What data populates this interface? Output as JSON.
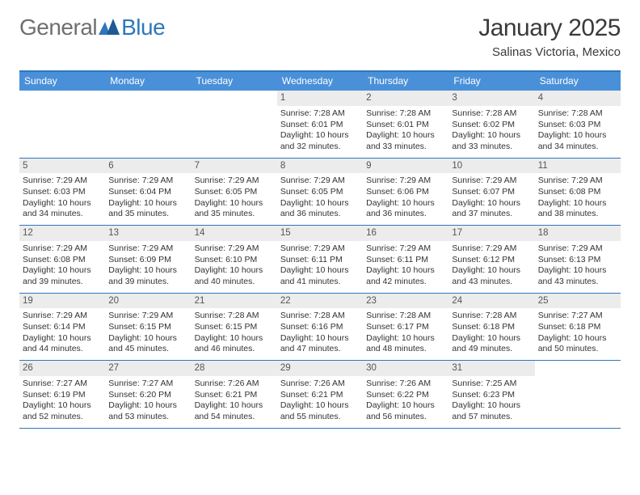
{
  "logo": {
    "text1": "General",
    "text2": "Blue"
  },
  "title": "January 2025",
  "location": "Salinas Victoria, Mexico",
  "colors": {
    "accent": "#4a90d9",
    "rule": "#2f77bb",
    "dayNumBg": "#ececec",
    "text": "#333333",
    "logoGray": "#6f6f6f"
  },
  "dow": [
    "Sunday",
    "Monday",
    "Tuesday",
    "Wednesday",
    "Thursday",
    "Friday",
    "Saturday"
  ],
  "weeks": [
    [
      {
        "n": "",
        "sr": "",
        "ss": "",
        "dl": ""
      },
      {
        "n": "",
        "sr": "",
        "ss": "",
        "dl": ""
      },
      {
        "n": "",
        "sr": "",
        "ss": "",
        "dl": ""
      },
      {
        "n": "1",
        "sr": "Sunrise: 7:28 AM",
        "ss": "Sunset: 6:01 PM",
        "dl": "Daylight: 10 hours and 32 minutes."
      },
      {
        "n": "2",
        "sr": "Sunrise: 7:28 AM",
        "ss": "Sunset: 6:01 PM",
        "dl": "Daylight: 10 hours and 33 minutes."
      },
      {
        "n": "3",
        "sr": "Sunrise: 7:28 AM",
        "ss": "Sunset: 6:02 PM",
        "dl": "Daylight: 10 hours and 33 minutes."
      },
      {
        "n": "4",
        "sr": "Sunrise: 7:28 AM",
        "ss": "Sunset: 6:03 PM",
        "dl": "Daylight: 10 hours and 34 minutes."
      }
    ],
    [
      {
        "n": "5",
        "sr": "Sunrise: 7:29 AM",
        "ss": "Sunset: 6:03 PM",
        "dl": "Daylight: 10 hours and 34 minutes."
      },
      {
        "n": "6",
        "sr": "Sunrise: 7:29 AM",
        "ss": "Sunset: 6:04 PM",
        "dl": "Daylight: 10 hours and 35 minutes."
      },
      {
        "n": "7",
        "sr": "Sunrise: 7:29 AM",
        "ss": "Sunset: 6:05 PM",
        "dl": "Daylight: 10 hours and 35 minutes."
      },
      {
        "n": "8",
        "sr": "Sunrise: 7:29 AM",
        "ss": "Sunset: 6:05 PM",
        "dl": "Daylight: 10 hours and 36 minutes."
      },
      {
        "n": "9",
        "sr": "Sunrise: 7:29 AM",
        "ss": "Sunset: 6:06 PM",
        "dl": "Daylight: 10 hours and 36 minutes."
      },
      {
        "n": "10",
        "sr": "Sunrise: 7:29 AM",
        "ss": "Sunset: 6:07 PM",
        "dl": "Daylight: 10 hours and 37 minutes."
      },
      {
        "n": "11",
        "sr": "Sunrise: 7:29 AM",
        "ss": "Sunset: 6:08 PM",
        "dl": "Daylight: 10 hours and 38 minutes."
      }
    ],
    [
      {
        "n": "12",
        "sr": "Sunrise: 7:29 AM",
        "ss": "Sunset: 6:08 PM",
        "dl": "Daylight: 10 hours and 39 minutes."
      },
      {
        "n": "13",
        "sr": "Sunrise: 7:29 AM",
        "ss": "Sunset: 6:09 PM",
        "dl": "Daylight: 10 hours and 39 minutes."
      },
      {
        "n": "14",
        "sr": "Sunrise: 7:29 AM",
        "ss": "Sunset: 6:10 PM",
        "dl": "Daylight: 10 hours and 40 minutes."
      },
      {
        "n": "15",
        "sr": "Sunrise: 7:29 AM",
        "ss": "Sunset: 6:11 PM",
        "dl": "Daylight: 10 hours and 41 minutes."
      },
      {
        "n": "16",
        "sr": "Sunrise: 7:29 AM",
        "ss": "Sunset: 6:11 PM",
        "dl": "Daylight: 10 hours and 42 minutes."
      },
      {
        "n": "17",
        "sr": "Sunrise: 7:29 AM",
        "ss": "Sunset: 6:12 PM",
        "dl": "Daylight: 10 hours and 43 minutes."
      },
      {
        "n": "18",
        "sr": "Sunrise: 7:29 AM",
        "ss": "Sunset: 6:13 PM",
        "dl": "Daylight: 10 hours and 43 minutes."
      }
    ],
    [
      {
        "n": "19",
        "sr": "Sunrise: 7:29 AM",
        "ss": "Sunset: 6:14 PM",
        "dl": "Daylight: 10 hours and 44 minutes."
      },
      {
        "n": "20",
        "sr": "Sunrise: 7:29 AM",
        "ss": "Sunset: 6:15 PM",
        "dl": "Daylight: 10 hours and 45 minutes."
      },
      {
        "n": "21",
        "sr": "Sunrise: 7:28 AM",
        "ss": "Sunset: 6:15 PM",
        "dl": "Daylight: 10 hours and 46 minutes."
      },
      {
        "n": "22",
        "sr": "Sunrise: 7:28 AM",
        "ss": "Sunset: 6:16 PM",
        "dl": "Daylight: 10 hours and 47 minutes."
      },
      {
        "n": "23",
        "sr": "Sunrise: 7:28 AM",
        "ss": "Sunset: 6:17 PM",
        "dl": "Daylight: 10 hours and 48 minutes."
      },
      {
        "n": "24",
        "sr": "Sunrise: 7:28 AM",
        "ss": "Sunset: 6:18 PM",
        "dl": "Daylight: 10 hours and 49 minutes."
      },
      {
        "n": "25",
        "sr": "Sunrise: 7:27 AM",
        "ss": "Sunset: 6:18 PM",
        "dl": "Daylight: 10 hours and 50 minutes."
      }
    ],
    [
      {
        "n": "26",
        "sr": "Sunrise: 7:27 AM",
        "ss": "Sunset: 6:19 PM",
        "dl": "Daylight: 10 hours and 52 minutes."
      },
      {
        "n": "27",
        "sr": "Sunrise: 7:27 AM",
        "ss": "Sunset: 6:20 PM",
        "dl": "Daylight: 10 hours and 53 minutes."
      },
      {
        "n": "28",
        "sr": "Sunrise: 7:26 AM",
        "ss": "Sunset: 6:21 PM",
        "dl": "Daylight: 10 hours and 54 minutes."
      },
      {
        "n": "29",
        "sr": "Sunrise: 7:26 AM",
        "ss": "Sunset: 6:21 PM",
        "dl": "Daylight: 10 hours and 55 minutes."
      },
      {
        "n": "30",
        "sr": "Sunrise: 7:26 AM",
        "ss": "Sunset: 6:22 PM",
        "dl": "Daylight: 10 hours and 56 minutes."
      },
      {
        "n": "31",
        "sr": "Sunrise: 7:25 AM",
        "ss": "Sunset: 6:23 PM",
        "dl": "Daylight: 10 hours and 57 minutes."
      },
      {
        "n": "",
        "sr": "",
        "ss": "",
        "dl": ""
      }
    ]
  ]
}
